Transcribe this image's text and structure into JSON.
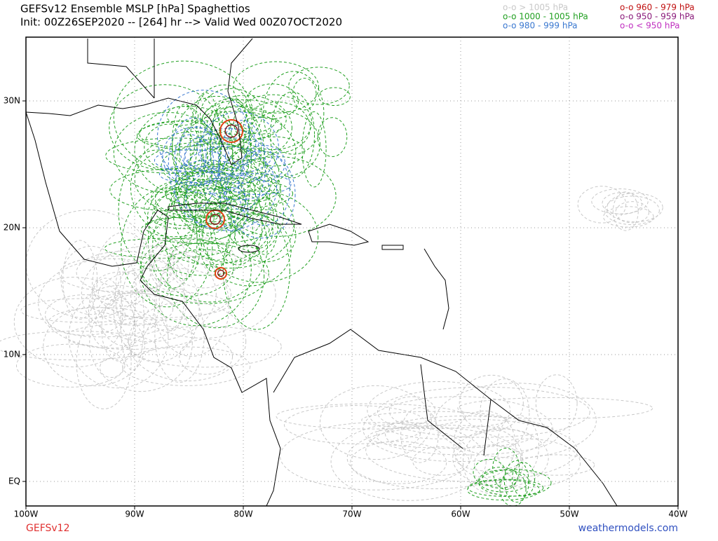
{
  "header": {
    "title": "GEFSv12 Ensemble MSLP [hPa] Spaghettios",
    "init": "Init: 00Z26SEP2020 -- [264] hr --> Valid Wed 00Z07OCT2020"
  },
  "legend": [
    {
      "label": "o-o > 1005 hPa",
      "color": "#c8c8c8"
    },
    {
      "label": "o-o 1000 - 1005 hPa",
      "color": "#22a022"
    },
    {
      "label": "o-o 980 - 999 hPa",
      "color": "#3a78d0"
    },
    {
      "label": "o-o 960 - 979 hPa",
      "color": "#c01010"
    },
    {
      "label": "o-o 950 - 959 hPa",
      "color": "#8a1a7a"
    },
    {
      "label": "o-o < 950 hPa",
      "color": "#c030c0"
    }
  ],
  "map": {
    "lat_labels": [
      "30N",
      "20N",
      "10N",
      "EQ"
    ],
    "lon_labels": [
      "100W",
      "90W",
      "80W",
      "70W",
      "60W",
      "50W",
      "40W"
    ]
  },
  "footer": {
    "model": "GEFSv12",
    "source": "weathermodels.com"
  }
}
